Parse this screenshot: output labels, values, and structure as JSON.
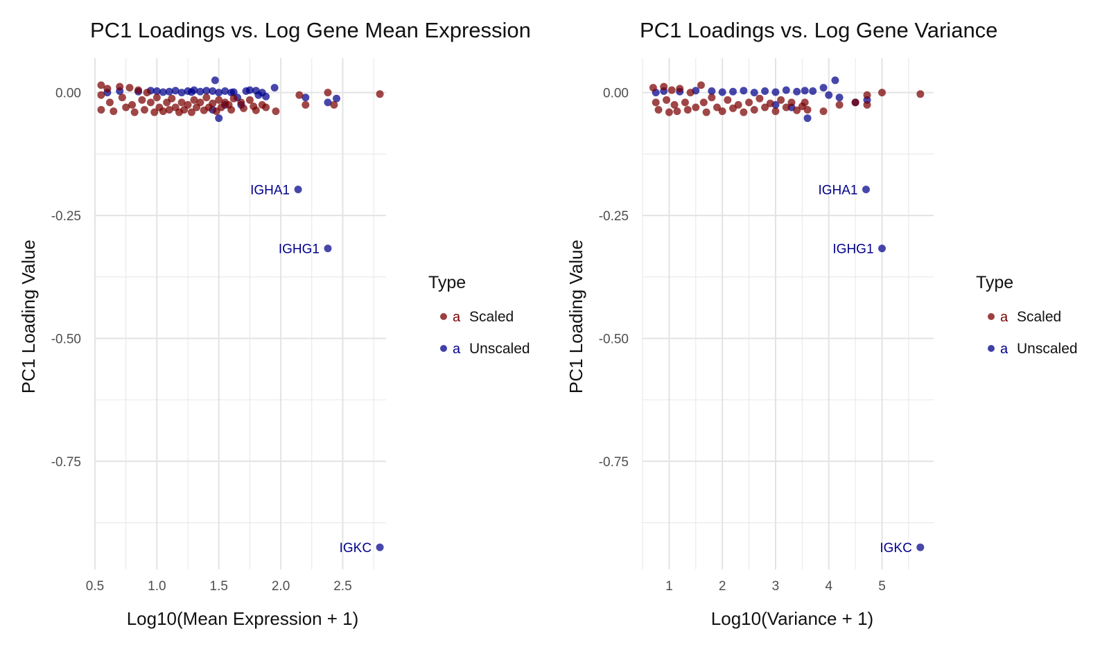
{
  "colors": {
    "scaled": "#7a0000",
    "unscaled": "#00008b",
    "grid": "#e6e6e6",
    "text": "#222222",
    "tick": "#4d4d4d"
  },
  "chart_data": [
    {
      "type": "scatter",
      "title": "PC1 Loadings vs. Log Gene Mean Expression",
      "xlabel": "Log10(Mean Expression + 1)",
      "ylabel": "PC1 Loading Value",
      "xlim": [
        0.5,
        2.85
      ],
      "ylim": [
        -0.97,
        0.07
      ],
      "xticks": [
        0.5,
        1.0,
        1.5,
        2.0,
        2.5
      ],
      "xtick_labels": [
        "0.5",
        "1.0",
        "1.5",
        "2.0",
        "2.5"
      ],
      "yticks": [
        0.0,
        -0.25,
        -0.5,
        -0.75
      ],
      "ytick_labels": [
        "0.00",
        "-0.25",
        "-0.50",
        "-0.75"
      ],
      "grid": true,
      "legend": {
        "title": "Type",
        "position": "right",
        "entries": [
          {
            "key": "a",
            "label": "Scaled",
            "series": "scaled"
          },
          {
            "key": "a",
            "label": "Unscaled",
            "series": "unscaled"
          }
        ]
      },
      "series": [
        {
          "name": "Unscaled",
          "color_key": "unscaled",
          "points": [
            [
              0.6,
              0.0
            ],
            [
              0.7,
              0.003
            ],
            [
              0.85,
              0.002
            ],
            [
              0.95,
              0.004
            ],
            [
              1.0,
              0.003
            ],
            [
              1.05,
              0.001
            ],
            [
              1.1,
              0.002
            ],
            [
              1.15,
              0.004
            ],
            [
              1.2,
              0.0
            ],
            [
              1.25,
              0.003
            ],
            [
              1.28,
              0.001
            ],
            [
              1.3,
              0.005
            ],
            [
              1.35,
              0.002
            ],
            [
              1.4,
              0.004
            ],
            [
              1.45,
              0.003
            ],
            [
              1.47,
              0.025
            ],
            [
              1.5,
              0.0
            ],
            [
              1.55,
              0.003
            ],
            [
              1.6,
              0.0
            ],
            [
              1.62,
              0.001
            ],
            [
              1.65,
              -0.01
            ],
            [
              1.68,
              -0.025
            ],
            [
              1.72,
              0.003
            ],
            [
              1.75,
              0.005
            ],
            [
              1.8,
              0.004
            ],
            [
              1.82,
              -0.005
            ],
            [
              1.85,
              0.0
            ],
            [
              1.88,
              -0.008
            ],
            [
              1.95,
              0.01
            ],
            [
              2.2,
              -0.01
            ],
            [
              2.38,
              -0.02
            ],
            [
              2.45,
              -0.012
            ],
            [
              1.5,
              -0.052
            ],
            [
              1.45,
              -0.035
            ],
            [
              1.55,
              -0.025
            ],
            [
              2.14,
              -0.197
            ],
            [
              2.38,
              -0.317
            ],
            [
              2.8,
              -0.925
            ]
          ]
        },
        {
          "name": "Scaled",
          "color_key": "scaled",
          "points": [
            [
              0.55,
              0.015
            ],
            [
              0.55,
              -0.005
            ],
            [
              0.55,
              -0.035
            ],
            [
              0.6,
              0.008
            ],
            [
              0.62,
              -0.02
            ],
            [
              0.65,
              -0.038
            ],
            [
              0.7,
              0.012
            ],
            [
              0.72,
              -0.01
            ],
            [
              0.75,
              -0.03
            ],
            [
              0.78,
              0.01
            ],
            [
              0.8,
              -0.025
            ],
            [
              0.82,
              -0.04
            ],
            [
              0.85,
              0.005
            ],
            [
              0.88,
              -0.015
            ],
            [
              0.9,
              -0.035
            ],
            [
              0.92,
              0.0
            ],
            [
              0.95,
              -0.02
            ],
            [
              0.98,
              -0.04
            ],
            [
              1.0,
              -0.01
            ],
            [
              1.02,
              -0.03
            ],
            [
              1.05,
              -0.038
            ],
            [
              1.08,
              -0.02
            ],
            [
              1.1,
              -0.035
            ],
            [
              1.12,
              -0.012
            ],
            [
              1.15,
              -0.03
            ],
            [
              1.18,
              -0.04
            ],
            [
              1.2,
              -0.02
            ],
            [
              1.22,
              -0.035
            ],
            [
              1.25,
              -0.025
            ],
            [
              1.28,
              -0.04
            ],
            [
              1.3,
              -0.015
            ],
            [
              1.32,
              -0.03
            ],
            [
              1.35,
              -0.02
            ],
            [
              1.38,
              -0.036
            ],
            [
              1.4,
              -0.01
            ],
            [
              1.42,
              -0.03
            ],
            [
              1.45,
              -0.022
            ],
            [
              1.48,
              -0.038
            ],
            [
              1.5,
              -0.015
            ],
            [
              1.52,
              -0.03
            ],
            [
              1.55,
              -0.02
            ],
            [
              1.58,
              -0.025
            ],
            [
              1.6,
              -0.035
            ],
            [
              1.62,
              -0.012
            ],
            [
              1.68,
              -0.02
            ],
            [
              1.7,
              -0.032
            ],
            [
              1.75,
              -0.015
            ],
            [
              1.78,
              -0.028
            ],
            [
              1.8,
              -0.036
            ],
            [
              1.85,
              -0.025
            ],
            [
              1.88,
              -0.03
            ],
            [
              1.96,
              -0.038
            ],
            [
              2.15,
              -0.005
            ],
            [
              2.2,
              -0.025
            ],
            [
              2.38,
              0.0
            ],
            [
              2.43,
              -0.025
            ],
            [
              2.8,
              -0.003
            ]
          ]
        }
      ],
      "annotations": [
        {
          "text": "IGHA1",
          "x": 2.14,
          "y": -0.197
        },
        {
          "text": "IGHG1",
          "x": 2.38,
          "y": -0.317
        },
        {
          "text": "IGKC",
          "x": 2.8,
          "y": -0.925
        }
      ]
    },
    {
      "type": "scatter",
      "title": "PC1 Loadings vs. Log Gene Variance",
      "xlabel": "Log10(Variance + 1)",
      "ylabel": "PC1 Loading Value",
      "xlim": [
        0.5,
        5.97
      ],
      "ylim": [
        -0.97,
        0.07
      ],
      "xticks": [
        1,
        2,
        3,
        4,
        5
      ],
      "xtick_labels": [
        "1",
        "2",
        "3",
        "4",
        "5"
      ],
      "yticks": [
        0.0,
        -0.25,
        -0.5,
        -0.75
      ],
      "ytick_labels": [
        "0.00",
        "-0.25",
        "-0.50",
        "-0.75"
      ],
      "grid": true,
      "legend": {
        "title": "Type",
        "position": "right",
        "entries": [
          {
            "key": "a",
            "label": "Scaled",
            "series": "scaled"
          },
          {
            "key": "a",
            "label": "Unscaled",
            "series": "unscaled"
          }
        ]
      },
      "series": [
        {
          "name": "Unscaled",
          "color_key": "unscaled",
          "points": [
            [
              0.75,
              0.0
            ],
            [
              0.9,
              0.003
            ],
            [
              1.2,
              0.002
            ],
            [
              1.5,
              0.004
            ],
            [
              1.8,
              0.003
            ],
            [
              2.0,
              0.001
            ],
            [
              2.2,
              0.002
            ],
            [
              2.4,
              0.004
            ],
            [
              2.6,
              0.0
            ],
            [
              2.8,
              0.003
            ],
            [
              3.0,
              0.001
            ],
            [
              3.2,
              0.005
            ],
            [
              3.4,
              0.002
            ],
            [
              3.55,
              0.004
            ],
            [
              3.7,
              0.003
            ],
            [
              3.9,
              0.01
            ],
            [
              4.0,
              -0.005
            ],
            [
              4.12,
              0.025
            ],
            [
              4.2,
              -0.01
            ],
            [
              4.5,
              -0.02
            ],
            [
              4.72,
              -0.015
            ],
            [
              3.6,
              -0.052
            ],
            [
              3.3,
              -0.03
            ],
            [
              3.0,
              -0.025
            ],
            [
              4.7,
              -0.197
            ],
            [
              5.0,
              -0.317
            ],
            [
              5.72,
              -0.925
            ]
          ]
        },
        {
          "name": "Scaled",
          "color_key": "scaled",
          "points": [
            [
              0.7,
              0.01
            ],
            [
              0.75,
              -0.02
            ],
            [
              0.8,
              -0.035
            ],
            [
              0.9,
              0.012
            ],
            [
              0.95,
              -0.015
            ],
            [
              1.0,
              -0.04
            ],
            [
              1.05,
              0.005
            ],
            [
              1.1,
              -0.025
            ],
            [
              1.15,
              -0.038
            ],
            [
              1.2,
              0.008
            ],
            [
              1.3,
              -0.02
            ],
            [
              1.35,
              -0.035
            ],
            [
              1.4,
              0.0
            ],
            [
              1.5,
              -0.03
            ],
            [
              1.6,
              0.015
            ],
            [
              1.65,
              -0.02
            ],
            [
              1.7,
              -0.04
            ],
            [
              1.8,
              -0.01
            ],
            [
              1.9,
              -0.03
            ],
            [
              2.0,
              -0.038
            ],
            [
              2.1,
              -0.015
            ],
            [
              2.2,
              -0.032
            ],
            [
              2.3,
              -0.025
            ],
            [
              2.4,
              -0.04
            ],
            [
              2.5,
              -0.02
            ],
            [
              2.6,
              -0.035
            ],
            [
              2.7,
              -0.012
            ],
            [
              2.8,
              -0.03
            ],
            [
              2.9,
              -0.022
            ],
            [
              3.0,
              -0.038
            ],
            [
              3.1,
              -0.015
            ],
            [
              3.2,
              -0.03
            ],
            [
              3.3,
              -0.02
            ],
            [
              3.4,
              -0.036
            ],
            [
              3.5,
              -0.028
            ],
            [
              3.55,
              -0.02
            ],
            [
              3.6,
              -0.035
            ],
            [
              3.9,
              -0.038
            ],
            [
              4.2,
              -0.025
            ],
            [
              4.5,
              -0.02
            ],
            [
              4.72,
              -0.005
            ],
            [
              4.72,
              -0.025
            ],
            [
              5.0,
              0.0
            ],
            [
              5.72,
              -0.003
            ]
          ]
        }
      ],
      "annotations": [
        {
          "text": "IGHA1",
          "x": 4.7,
          "y": -0.197
        },
        {
          "text": "IGHG1",
          "x": 5.0,
          "y": -0.317
        },
        {
          "text": "IGKC",
          "x": 5.72,
          "y": -0.925
        }
      ]
    }
  ]
}
